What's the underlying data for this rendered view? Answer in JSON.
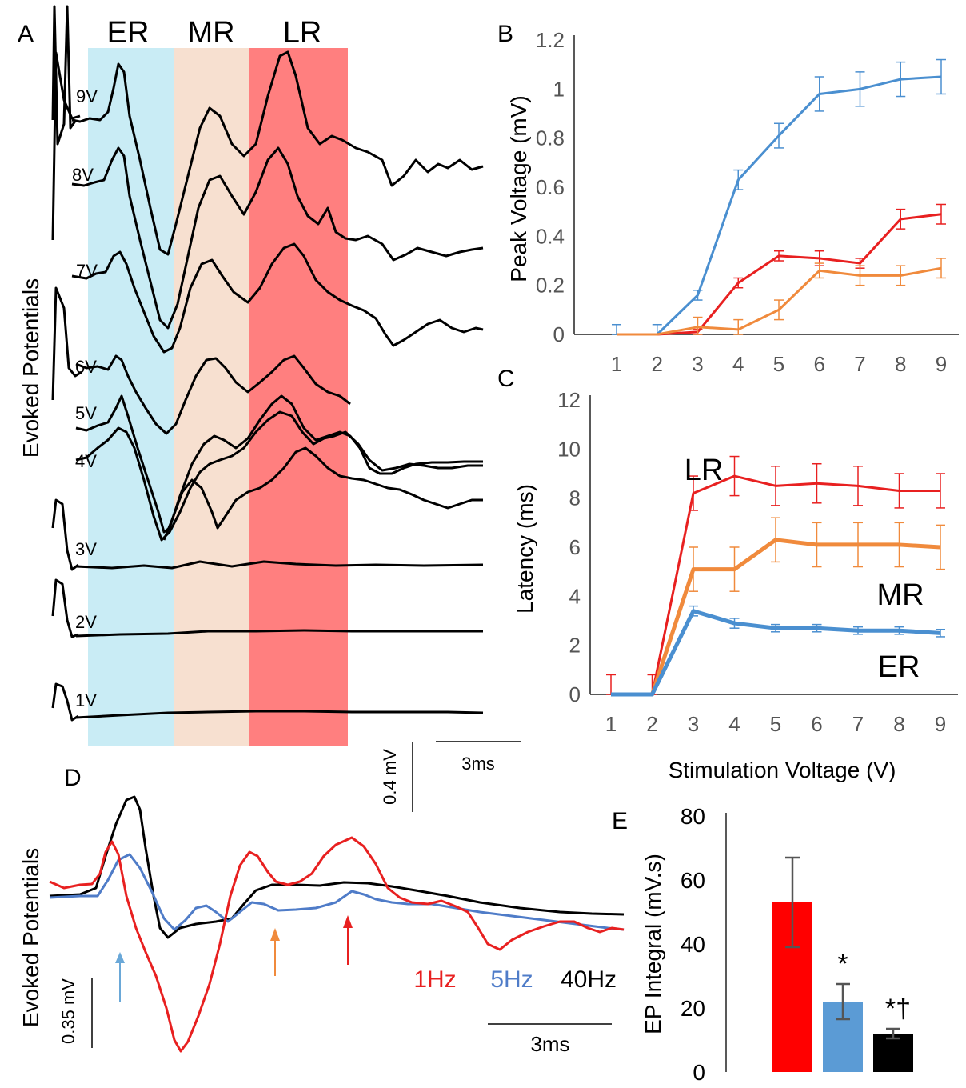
{
  "figure": {
    "panels": [
      "A",
      "B",
      "C",
      "D",
      "E"
    ]
  },
  "colors": {
    "ER": "#4a8fd0",
    "MR": "#f08a3c",
    "LR": "#e82020",
    "band_ER": "#c9ecf5",
    "band_MR": "#f7e0d0",
    "band_LR": "#ff7f7f",
    "hz1": "#e82020",
    "hz5": "#4f7cc8",
    "hz40": "#000000",
    "E_bars": [
      "#ff0000",
      "#5b9bd5",
      "#000000"
    ]
  },
  "panel_A": {
    "letter": "A",
    "ylabel": "Evoked Potentials",
    "bands": [
      "ER",
      "MR",
      "LR"
    ],
    "trace_labels": [
      "9V",
      "8V",
      "7V",
      "6V",
      "5V",
      "4V",
      "3V",
      "2V",
      "1V"
    ],
    "scale_v": "0.4 mV",
    "scale_t": "3ms"
  },
  "panel_D": {
    "letter": "D",
    "ylabel": "Evoked Potentials",
    "legend": [
      "1Hz",
      "5Hz",
      "40Hz"
    ],
    "scale_v": "0.35 mV",
    "scale_t": "3ms"
  },
  "chart_data": [
    {
      "id": "B",
      "type": "line",
      "letter": "B",
      "ylabel": "Peak Voltage (mV)",
      "xlabel": "",
      "x": [
        1,
        2,
        3,
        4,
        5,
        6,
        7,
        8,
        9
      ],
      "ylim": [
        0,
        1.2
      ],
      "yticks": [
        "0",
        "0.2",
        "0.4",
        "0.6",
        "0.8",
        "1",
        "1.2"
      ],
      "series": [
        {
          "key": "ER",
          "values": [
            0,
            0,
            0.16,
            0.63,
            0.81,
            0.98,
            1.0,
            1.04,
            1.05
          ],
          "err": [
            0.04,
            0.04,
            0.02,
            0.04,
            0.05,
            0.07,
            0.07,
            0.07,
            0.07
          ]
        },
        {
          "key": "LR",
          "values": [
            0,
            0,
            0.01,
            0.21,
            0.32,
            0.31,
            0.29,
            0.47,
            0.49
          ],
          "err": [
            0,
            0,
            0.01,
            0.02,
            0.02,
            0.03,
            0.02,
            0.04,
            0.04
          ]
        },
        {
          "key": "MR",
          "values": [
            0,
            0,
            0.03,
            0.02,
            0.1,
            0.26,
            0.24,
            0.24,
            0.27
          ],
          "err": [
            0,
            0,
            0.04,
            0.04,
            0.04,
            0.03,
            0.04,
            0.04,
            0.04
          ]
        }
      ]
    },
    {
      "id": "C",
      "type": "line",
      "letter": "C",
      "ylabel": "Latency (ms)",
      "xlabel": "Stimulation Voltage (V)",
      "x": [
        1,
        2,
        3,
        4,
        5,
        6,
        7,
        8,
        9
      ],
      "ylim": [
        0,
        12
      ],
      "yticks": [
        "0",
        "2",
        "4",
        "6",
        "8",
        "10",
        "12"
      ],
      "series_labels": [
        "LR",
        "MR",
        "ER"
      ],
      "series": [
        {
          "key": "LR",
          "values": [
            0,
            0,
            8.2,
            8.9,
            8.5,
            8.6,
            8.5,
            8.3,
            8.3
          ],
          "err": [
            0.8,
            0.8,
            0.7,
            0.8,
            0.8,
            0.8,
            0.8,
            0.7,
            0.7
          ]
        },
        {
          "key": "MR",
          "values": [
            0,
            0,
            5.1,
            5.1,
            6.3,
            6.1,
            6.1,
            6.1,
            6.0
          ],
          "err": [
            0,
            0,
            0.9,
            0.9,
            0.9,
            0.9,
            0.9,
            0.9,
            0.9
          ]
        },
        {
          "key": "ER",
          "values": [
            0,
            0,
            3.4,
            2.9,
            2.7,
            2.7,
            2.6,
            2.6,
            2.5
          ],
          "err": [
            0,
            0,
            0.2,
            0.2,
            0.15,
            0.15,
            0.15,
            0.15,
            0.15
          ]
        }
      ]
    },
    {
      "id": "E",
      "type": "bar",
      "letter": "E",
      "ylabel": "EP Integral (mV.s)",
      "ylim": [
        0,
        80
      ],
      "yticks": [
        "0",
        "20",
        "40",
        "60",
        "80"
      ],
      "values": [
        53,
        22,
        12
      ],
      "err": [
        14,
        5.5,
        1.5
      ],
      "annotations": [
        "",
        "*",
        "*†"
      ]
    }
  ]
}
